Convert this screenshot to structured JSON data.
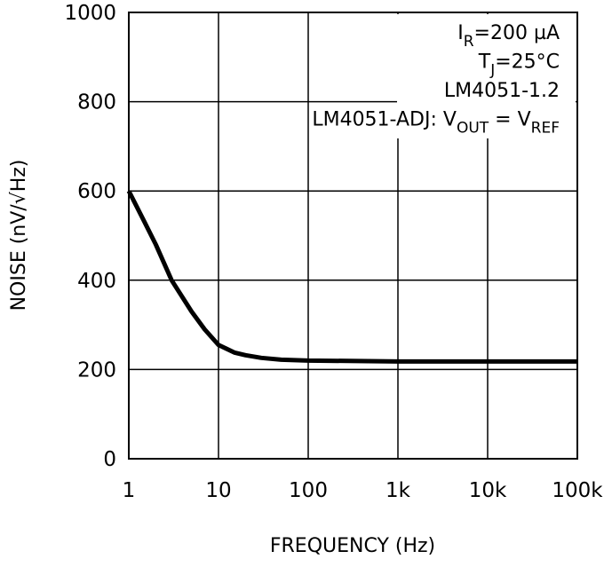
{
  "chart_data": {
    "type": "line",
    "xlabel": "FREQUENCY (Hz)",
    "ylabel": "NOISE (nV/√Hz)",
    "x": [
      1,
      1.5,
      2,
      3,
      5,
      7,
      10,
      15,
      20,
      30,
      50,
      100,
      1000,
      10000,
      100000
    ],
    "series": [
      {
        "color": "#000000",
        "values": [
          600,
          530,
          480,
          400,
          330,
          290,
          255,
          238,
          232,
          226,
          222,
          220,
          218,
          218,
          218
        ]
      }
    ],
    "xscale": "log",
    "xlim": [
      1,
      100000
    ],
    "xticks": [
      1,
      10,
      100,
      {
        "value": 1000,
        "label": "1k"
      },
      {
        "value": 10000,
        "label": "10k"
      },
      {
        "value": 100000,
        "label": "100k"
      }
    ],
    "ylim": [
      0,
      1000
    ],
    "yticks": [
      0,
      200,
      400,
      600,
      800,
      1000
    ],
    "grid": true,
    "annotations": [
      [
        {
          "text": "I"
        },
        {
          "sub": "R"
        },
        {
          "text": "=200 µA"
        }
      ],
      [
        {
          "text": "T"
        },
        {
          "sub": "J"
        },
        {
          "text": "=25°C"
        }
      ],
      [
        {
          "text": "LM4051-1.2"
        }
      ],
      [
        {
          "text": "LM4051-ADJ: V"
        },
        {
          "sub": "OUT"
        },
        {
          "text": " = V"
        },
        {
          "sub": "REF"
        }
      ]
    ]
  }
}
